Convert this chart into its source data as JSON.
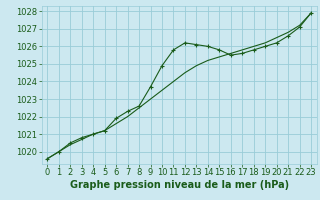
{
  "title": "Graphe pression niveau de la mer (hPa)",
  "bg_color": "#cce8f0",
  "grid_color": "#99ccd8",
  "line_color": "#1a5c1a",
  "x": [
    0,
    1,
    2,
    3,
    4,
    5,
    6,
    7,
    8,
    9,
    10,
    11,
    12,
    13,
    14,
    15,
    16,
    17,
    18,
    19,
    20,
    21,
    22,
    23
  ],
  "y_measured": [
    1019.6,
    1020.0,
    1020.5,
    1020.8,
    1021.0,
    1021.2,
    1021.9,
    1022.3,
    1022.6,
    1023.7,
    1024.9,
    1025.8,
    1026.2,
    1026.1,
    1026.0,
    1025.8,
    1025.5,
    1025.6,
    1025.8,
    1026.0,
    1026.2,
    1026.6,
    1027.1,
    1027.9
  ],
  "y_trend": [
    1019.6,
    1020.0,
    1020.4,
    1020.7,
    1021.0,
    1021.2,
    1021.6,
    1022.0,
    1022.5,
    1023.0,
    1023.5,
    1024.0,
    1024.5,
    1024.9,
    1025.2,
    1025.4,
    1025.6,
    1025.8,
    1026.0,
    1026.2,
    1026.5,
    1026.8,
    1027.2,
    1027.9
  ],
  "ylim": [
    1019.3,
    1028.3
  ],
  "yticks": [
    1020,
    1021,
    1022,
    1023,
    1024,
    1025,
    1026,
    1027,
    1028
  ],
  "xlim": [
    -0.5,
    23.5
  ],
  "xticks": [
    0,
    1,
    2,
    3,
    4,
    5,
    6,
    7,
    8,
    9,
    10,
    11,
    12,
    13,
    14,
    15,
    16,
    17,
    18,
    19,
    20,
    21,
    22,
    23
  ],
  "tick_fontsize": 6,
  "label_fontsize": 7
}
